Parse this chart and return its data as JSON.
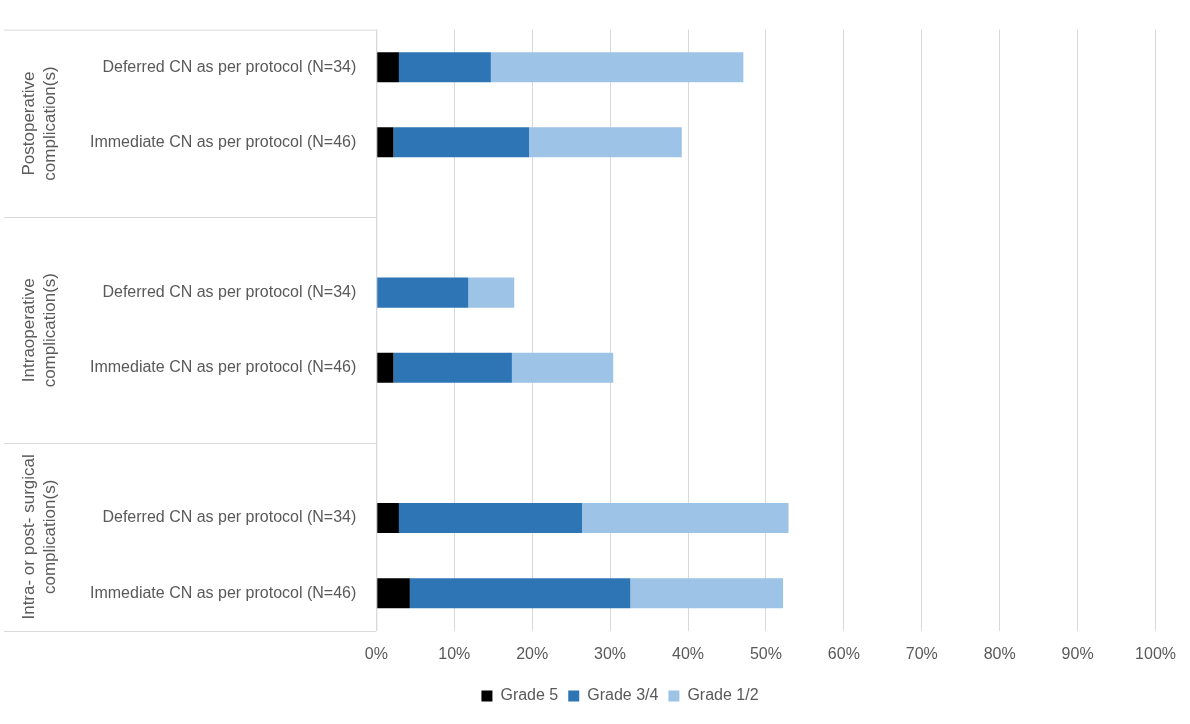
{
  "chart_data": {
    "type": "bar",
    "orientation": "horizontal",
    "stacked": true,
    "categories": [
      "Deferred CN as per protocol (N=34)",
      "Immediate CN as per protocol (N=46)",
      null,
      "Deferred CN as per protocol (N=34)",
      "Immediate CN as per protocol (N=46)",
      null,
      "Deferred CN as per protocol (N=34)",
      "Immediate CN as per protocol (N=46)"
    ],
    "series": [
      {
        "name": "Grade 5",
        "color": "#000000",
        "values": [
          2.9,
          2.2,
          null,
          0,
          2.2,
          null,
          2.9,
          4.3
        ]
      },
      {
        "name": "Grade 3/4",
        "color": "#2e75b6",
        "values": [
          11.8,
          17.4,
          null,
          11.8,
          15.2,
          null,
          23.5,
          28.3
        ]
      },
      {
        "name": "Grade 1/2",
        "color": "#9dc3e6",
        "values": [
          32.4,
          19.6,
          null,
          5.9,
          13.0,
          null,
          26.5,
          19.6
        ]
      }
    ],
    "xlim": [
      0,
      100
    ],
    "xticks": [
      {
        "value": 0,
        "label": "0%"
      },
      {
        "value": 10,
        "label": "10%"
      },
      {
        "value": 20,
        "label": "20%"
      },
      {
        "value": 30,
        "label": "30%"
      },
      {
        "value": 40,
        "label": "40%"
      },
      {
        "value": 50,
        "label": "50%"
      },
      {
        "value": 60,
        "label": "60%"
      },
      {
        "value": 70,
        "label": "70%"
      },
      {
        "value": 80,
        "label": "80%"
      },
      {
        "value": 90,
        "label": "90%"
      },
      {
        "value": 100,
        "label": "100%"
      }
    ],
    "annotations": [
      "Postoperative complication(s)",
      "Intraoperative complication(s)",
      "Intra- or post- surgical complication(s)"
    ],
    "grid": "x",
    "legend": "bottom"
  }
}
